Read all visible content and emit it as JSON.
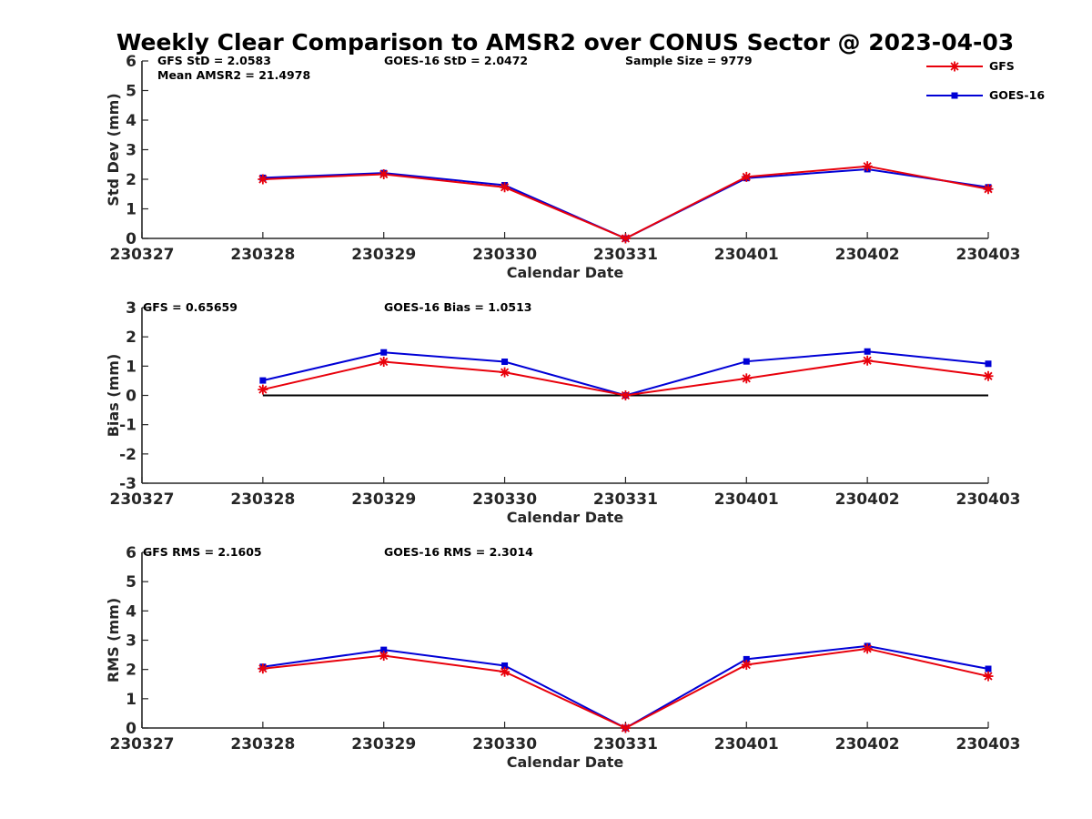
{
  "title": "Weekly Clear Comparison to AMSR2 over CONUS Sector @ 2023-04-03",
  "legend": [
    {
      "name": "GFS",
      "color": "#e8000b",
      "marker": "asterisk"
    },
    {
      "name": "GOES-16",
      "color": "#0000d6",
      "marker": "square"
    }
  ],
  "chart_data": [
    {
      "type": "line",
      "xlabel": "Calendar Date",
      "ylabel": "Std Dev (mm)",
      "ylim": [
        0,
        6
      ],
      "yticks": [
        "0",
        "1",
        "2",
        "3",
        "4",
        "5",
        "6"
      ],
      "categories": [
        "230327",
        "230328",
        "230329",
        "230330",
        "230331",
        "230401",
        "230402",
        "230403"
      ],
      "annotations": [
        "GFS StD = 2.0583",
        "Mean AMSR2 = 21.4978",
        "GOES-16 StD = 2.0472",
        "Sample Size = 9779"
      ],
      "series": [
        {
          "name": "GFS",
          "x": [
            "230328",
            "230329",
            "230330",
            "230331",
            "230401",
            "230402",
            "230403"
          ],
          "values": [
            2.0,
            2.17,
            1.73,
            0.0,
            2.08,
            2.44,
            1.67
          ]
        },
        {
          "name": "GOES-16",
          "x": [
            "230328",
            "230329",
            "230330",
            "230331",
            "230401",
            "230402",
            "230403"
          ],
          "values": [
            2.05,
            2.21,
            1.8,
            0.0,
            2.04,
            2.34,
            1.73
          ]
        }
      ]
    },
    {
      "type": "line",
      "xlabel": "Calendar Date",
      "ylabel": "Bias (mm)",
      "ylim": [
        -3,
        3
      ],
      "yticks": [
        "-3",
        "-2",
        "-1",
        "0",
        "1",
        "2",
        "3"
      ],
      "categories": [
        "230327",
        "230328",
        "230329",
        "230330",
        "230331",
        "230401",
        "230402",
        "230403"
      ],
      "annotations": [
        "GFS = 0.65659",
        "GOES-16 Bias  = 1.0513"
      ],
      "zero_line": true,
      "series": [
        {
          "name": "GFS",
          "x": [
            "230328",
            "230329",
            "230330",
            "230331",
            "230401",
            "230402",
            "230403"
          ],
          "values": [
            0.2,
            1.15,
            0.79,
            0.0,
            0.58,
            1.19,
            0.66
          ]
        },
        {
          "name": "GOES-16",
          "x": [
            "230328",
            "230329",
            "230330",
            "230331",
            "230401",
            "230402",
            "230403"
          ],
          "values": [
            0.51,
            1.47,
            1.15,
            0.0,
            1.16,
            1.5,
            1.08
          ]
        }
      ]
    },
    {
      "type": "line",
      "xlabel": "Calendar Date",
      "ylabel": "RMS (mm)",
      "ylim": [
        0,
        6
      ],
      "yticks": [
        "0",
        "1",
        "2",
        "3",
        "4",
        "5",
        "6"
      ],
      "categories": [
        "230327",
        "230328",
        "230329",
        "230330",
        "230331",
        "230401",
        "230402",
        "230403"
      ],
      "annotations": [
        "GFS RMS = 2.1605",
        "GOES-16 RMS = 2.3014"
      ],
      "series": [
        {
          "name": "GFS",
          "x": [
            "230328",
            "230329",
            "230330",
            "230331",
            "230401",
            "230402",
            "230403"
          ],
          "values": [
            2.03,
            2.47,
            1.92,
            0.0,
            2.16,
            2.71,
            1.77
          ]
        },
        {
          "name": "GOES-16",
          "x": [
            "230328",
            "230329",
            "230330",
            "230331",
            "230401",
            "230402",
            "230403"
          ],
          "values": [
            2.09,
            2.67,
            2.13,
            0.0,
            2.35,
            2.8,
            2.02
          ]
        }
      ]
    }
  ]
}
